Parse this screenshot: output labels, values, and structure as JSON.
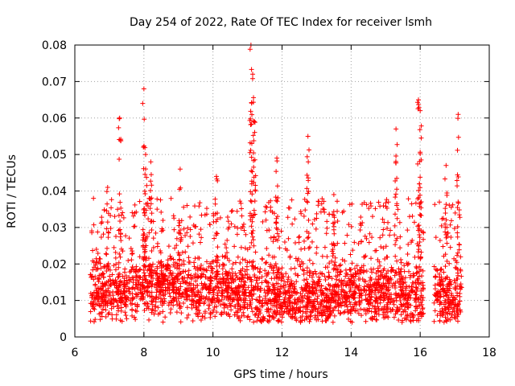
{
  "chart_data": {
    "type": "scatter",
    "title": "Day 254 of 2022, Rate Of TEC Index for receiver lsmh",
    "xlabel": "GPS time / hours",
    "ylabel": "ROTI / TECUs",
    "xlim": [
      6,
      18
    ],
    "ylim": [
      0,
      0.08
    ],
    "xticks": [
      "6",
      "8",
      "10",
      "12",
      "14",
      "16",
      "18"
    ],
    "yticks": [
      "0",
      "0.01",
      "0.02",
      "0.03",
      "0.04",
      "0.05",
      "0.06",
      "0.07",
      "0.08"
    ],
    "grid": true,
    "marker": "+",
    "color": "#ff0000",
    "data_segments": [
      {
        "start": 6.45,
        "end": 7.55,
        "base": 0.012
      },
      {
        "start": 7.55,
        "end": 9.2,
        "base": 0.014
      },
      {
        "start": 9.2,
        "end": 11.0,
        "base": 0.013
      },
      {
        "start": 11.0,
        "end": 13.5,
        "base": 0.011
      },
      {
        "start": 13.5,
        "end": 16.1,
        "base": 0.012
      },
      {
        "start": 16.4,
        "end": 17.2,
        "base": 0.011
      }
    ],
    "peaks": [
      {
        "x": 6.95,
        "y": 0.041
      },
      {
        "x": 7.3,
        "y": 0.06
      },
      {
        "x": 8.0,
        "y": 0.068
      },
      {
        "x": 8.05,
        "y": 0.05
      },
      {
        "x": 8.2,
        "y": 0.048
      },
      {
        "x": 9.05,
        "y": 0.046
      },
      {
        "x": 10.1,
        "y": 0.044
      },
      {
        "x": 11.1,
        "y": 0.08
      },
      {
        "x": 11.15,
        "y": 0.072
      },
      {
        "x": 11.2,
        "y": 0.059
      },
      {
        "x": 11.85,
        "y": 0.049
      },
      {
        "x": 12.75,
        "y": 0.055
      },
      {
        "x": 13.5,
        "y": 0.039
      },
      {
        "x": 15.3,
        "y": 0.057
      },
      {
        "x": 15.95,
        "y": 0.065
      },
      {
        "x": 16.0,
        "y": 0.062
      },
      {
        "x": 16.75,
        "y": 0.047
      },
      {
        "x": 17.1,
        "y": 0.061
      }
    ]
  }
}
